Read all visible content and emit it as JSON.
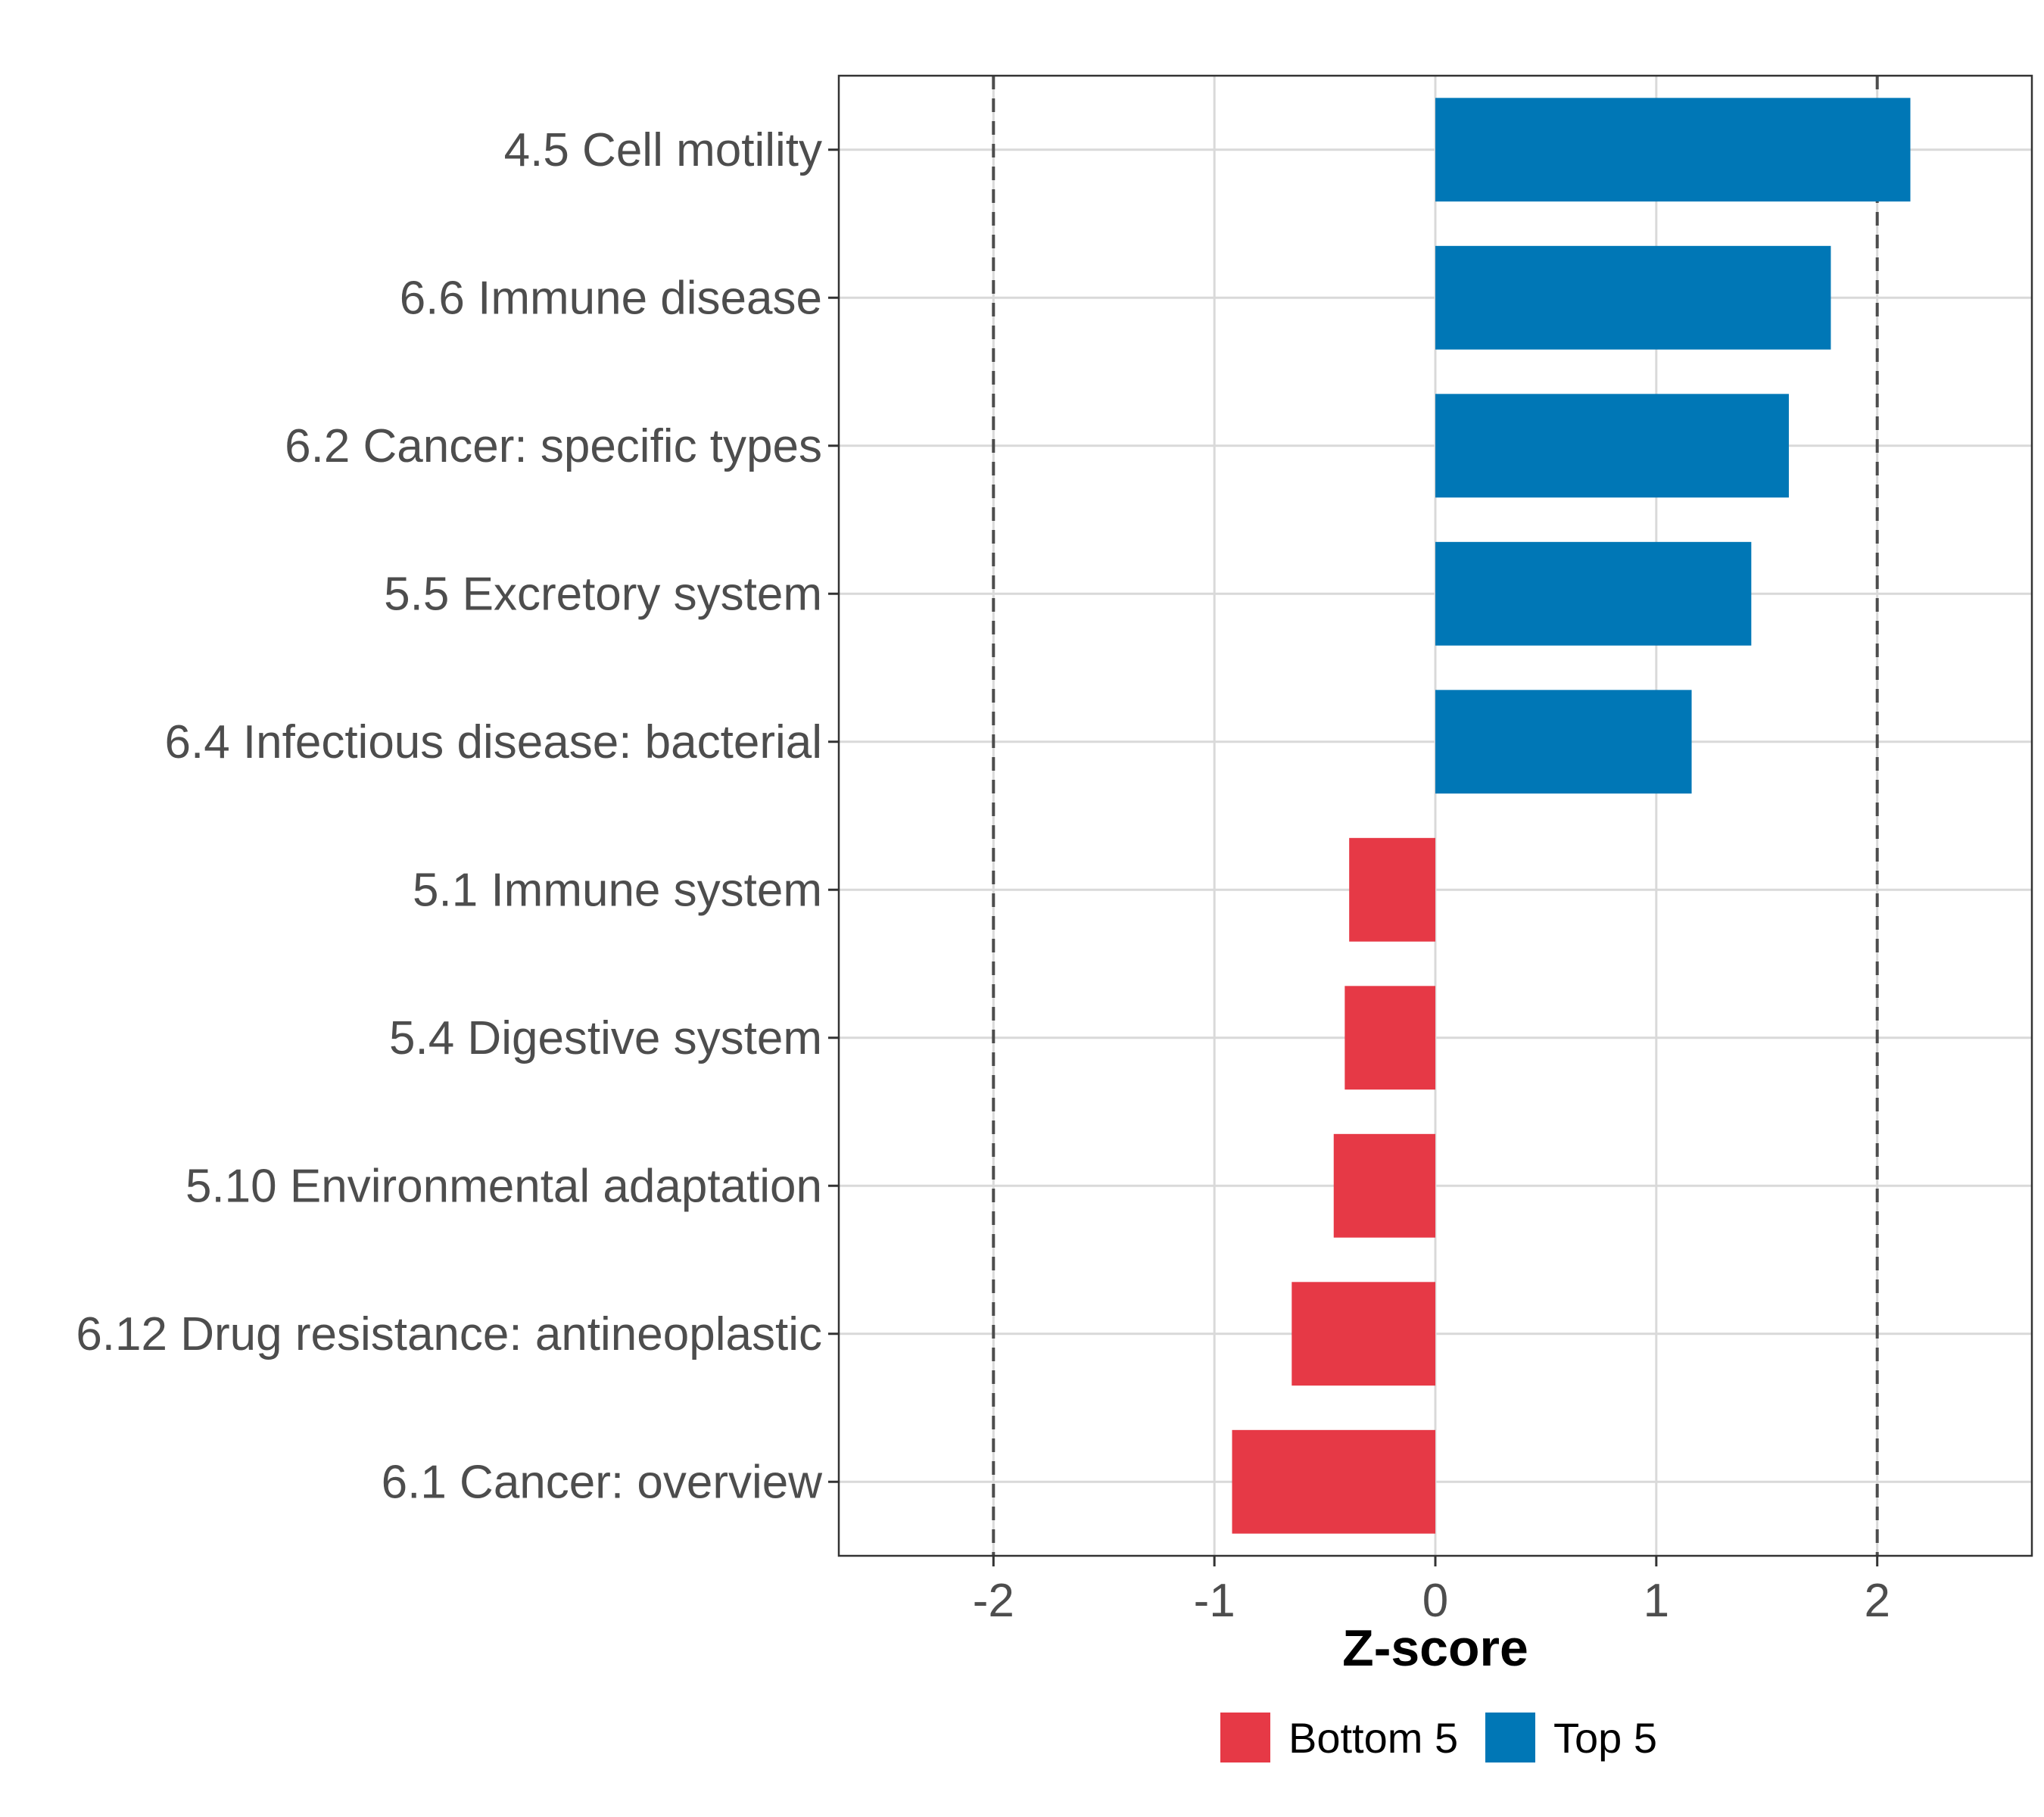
{
  "chart_data": {
    "type": "bar",
    "orientation": "horizontal",
    "categories": [
      "4.5 Cell motility",
      "6.6 Immune disease",
      "6.2 Cancer: specific types",
      "5.5 Excretory system",
      "6.4 Infectious disease: bacterial",
      "5.1 Immune system",
      "5.4 Digestive system",
      "5.10 Environmental adaptation",
      "6.12 Drug resistance: antineoplastic",
      "6.1 Cancer: overview"
    ],
    "values": [
      2.15,
      1.79,
      1.6,
      1.43,
      1.16,
      -0.39,
      -0.41,
      -0.46,
      -0.65,
      -0.92
    ],
    "groups": [
      "Top 5",
      "Top 5",
      "Top 5",
      "Top 5",
      "Top 5",
      "Bottom 5",
      "Bottom 5",
      "Bottom 5",
      "Bottom 5",
      "Bottom 5"
    ],
    "xlabel": "Z-score",
    "ylabel": "",
    "title": "",
    "xlim": [
      -2.7,
      2.7
    ],
    "xticks": [
      -2,
      -1,
      0,
      1,
      2
    ],
    "xtick_labels": [
      "-2",
      "-1",
      "0",
      "1",
      "2"
    ],
    "reference_lines": [
      -2,
      2
    ],
    "grid": true,
    "legend": {
      "position": "bottom",
      "entries": [
        {
          "label": "Bottom 5",
          "color": "#e63946"
        },
        {
          "label": "Top 5",
          "color": "#0077b6"
        }
      ]
    }
  },
  "colors": {
    "top": "#0077b6",
    "bottom": "#e63946",
    "grid": "#d9d9d9",
    "reference_line": "#4d4d4d"
  }
}
